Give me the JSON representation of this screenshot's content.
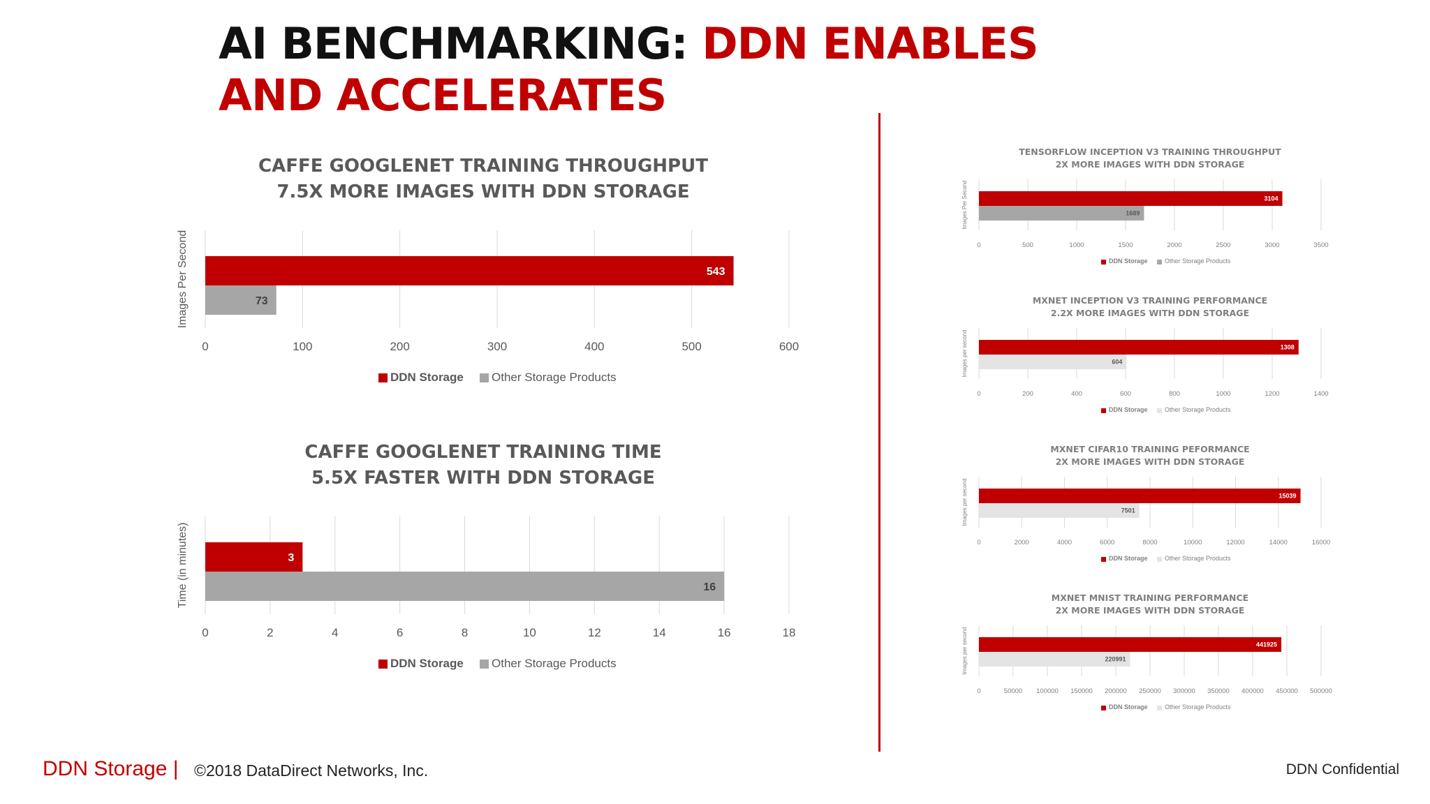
{
  "slide": {
    "title_part1": "AI BENCHMARKING: ",
    "title_part2": "DDN ENABLES AND ACCELERATES",
    "footer_brand": "DDN Storage",
    "footer_separator": "|",
    "footer_copyright": "©2018 DataDirect Networks, Inc.",
    "footer_confidential": "DDN Confidential"
  },
  "colors": {
    "ddn": "#c00000",
    "other": "#a6a6a6",
    "other_light": "#e4e4e4",
    "grid": "#d9d9d9",
    "text": "#595959"
  },
  "chart_data": [
    {
      "type": "bar",
      "orientation": "horizontal",
      "title": [
        "CAFFE GOOGLENET TRAINING THROUGHPUT",
        "7.5X MORE IMAGES WITH DDN STORAGE"
      ],
      "ylabel": "Images Per Second",
      "xlim": [
        0,
        600
      ],
      "xticks": [
        "0",
        "100",
        "200",
        "300",
        "400",
        "500",
        "600"
      ],
      "series": [
        {
          "name": "DDN Storage",
          "values": [
            543
          ],
          "labels": [
            "543"
          ]
        },
        {
          "name": "Other Storage Products",
          "values": [
            73
          ],
          "labels": [
            "73"
          ]
        }
      ],
      "legend": "bottom",
      "grid": true
    },
    {
      "type": "bar",
      "orientation": "horizontal",
      "title": [
        "CAFFE GOOGLENET TRAINING TIME",
        "5.5X FASTER WITH DDN STORAGE"
      ],
      "ylabel": "Time (in minutes)",
      "xlim": [
        0,
        18
      ],
      "xticks": [
        "0",
        "2",
        "4",
        "6",
        "8",
        "10",
        "12",
        "14",
        "16",
        "18"
      ],
      "series": [
        {
          "name": "DDN Storage",
          "values": [
            3
          ],
          "labels": [
            "3"
          ]
        },
        {
          "name": "Other Storage Products",
          "values": [
            16
          ],
          "labels": [
            "16"
          ]
        }
      ],
      "legend": "bottom",
      "grid": true
    },
    {
      "type": "bar",
      "orientation": "horizontal",
      "title": [
        "TENSORFLOW INCEPTION V3 TRAINING THROUGHPUT",
        "2X MORE IMAGES WITH DDN STORAGE"
      ],
      "ylabel": "Images Per Second",
      "xlim": [
        0,
        3500
      ],
      "xticks": [
        "0",
        "500",
        "1000",
        "1500",
        "2000",
        "2500",
        "3000",
        "3500"
      ],
      "series": [
        {
          "name": "DDN Storage",
          "values": [
            3104
          ],
          "labels": [
            "3104"
          ]
        },
        {
          "name": "Other Storage Products",
          "values": [
            1689
          ],
          "labels": [
            "1689"
          ]
        }
      ],
      "legend": "bottom",
      "grid": true
    },
    {
      "type": "bar",
      "orientation": "horizontal",
      "title": [
        "MXNET INCEPTION V3 TRAINING PERFORMANCE",
        "2.2X MORE IMAGES WITH DDN STORAGE"
      ],
      "ylabel": "Images per second",
      "xlim": [
        0,
        1400
      ],
      "xticks": [
        "0",
        "200",
        "400",
        "600",
        "800",
        "1000",
        "1200",
        "1400"
      ],
      "series": [
        {
          "name": "DDN Storage",
          "values": [
            1308
          ],
          "labels": [
            "1308"
          ]
        },
        {
          "name": "Other Storage Products",
          "values": [
            604
          ],
          "labels": [
            "604"
          ]
        }
      ],
      "legend": "bottom",
      "grid": true
    },
    {
      "type": "bar",
      "orientation": "horizontal",
      "title": [
        "MXNET CIFAR10 TRAINING PEFORMANCE",
        "2X MORE IMAGES WITH DDN STORAGE"
      ],
      "ylabel": "Images per second",
      "xlim": [
        0,
        16000
      ],
      "xticks": [
        "0",
        "2000",
        "4000",
        "6000",
        "8000",
        "10000",
        "12000",
        "14000",
        "16000"
      ],
      "series": [
        {
          "name": "DDN Storage",
          "values": [
            15039
          ],
          "labels": [
            "15039"
          ]
        },
        {
          "name": "Other Storage Products",
          "values": [
            7501
          ],
          "labels": [
            "7501"
          ]
        }
      ],
      "legend": "bottom",
      "grid": true
    },
    {
      "type": "bar",
      "orientation": "horizontal",
      "title": [
        "MXNET MNIST TRAINING PERFORMANCE",
        "2X MORE IMAGES WITH DDN STORAGE"
      ],
      "ylabel": "Images per second",
      "xlim": [
        0,
        500000
      ],
      "xticks": [
        "0",
        "50000",
        "100000",
        "150000",
        "200000",
        "250000",
        "300000",
        "350000",
        "400000",
        "450000",
        "500000"
      ],
      "series": [
        {
          "name": "DDN Storage",
          "values": [
            441925
          ],
          "labels": [
            "441925"
          ]
        },
        {
          "name": "Other Storage Products",
          "values": [
            220991
          ],
          "labels": [
            "220991"
          ]
        }
      ],
      "legend": "bottom",
      "grid": true
    }
  ]
}
